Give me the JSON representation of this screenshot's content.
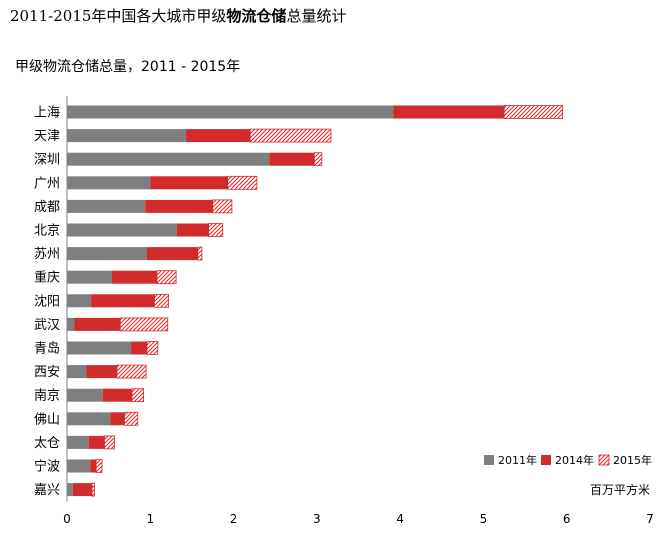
{
  "header": {
    "title_part1": "2011-2015年中国各大城市甲级",
    "title_part2": "物流仓储",
    "title_part3": "总量统计"
  },
  "chart_data": {
    "type": "bar",
    "orientation": "horizontal",
    "stacked": true,
    "title": "甲级物流仓储总量，2011 - 2015年",
    "unit_label": "百万平方米",
    "categories": [
      "上海",
      "天津",
      "深圳",
      "广州",
      "成都",
      "北京",
      "苏州",
      "重庆",
      "沈阳",
      "武汉",
      "青岛",
      "西安",
      "南京",
      "佛山",
      "太仓",
      "宁波",
      "嘉兴"
    ],
    "series": [
      {
        "name": "2011年",
        "color": "#7f7f7f",
        "pattern": "solid",
        "values": [
          3.92,
          1.43,
          2.43,
          1.0,
          0.94,
          1.32,
          0.96,
          0.54,
          0.29,
          0.09,
          0.77,
          0.23,
          0.43,
          0.52,
          0.26,
          0.28,
          0.07
        ]
      },
      {
        "name": "2014年",
        "color": "#d22b2b",
        "pattern": "solid",
        "values": [
          1.33,
          0.77,
          0.54,
          0.93,
          0.81,
          0.38,
          0.61,
          0.54,
          0.76,
          0.55,
          0.19,
          0.37,
          0.35,
          0.17,
          0.19,
          0.07,
          0.23
        ]
      },
      {
        "name": "2015年",
        "color": "#d22b2b",
        "pattern": "hatch",
        "values": [
          0.7,
          0.97,
          0.09,
          0.35,
          0.23,
          0.17,
          0.05,
          0.23,
          0.17,
          0.57,
          0.13,
          0.35,
          0.14,
          0.16,
          0.12,
          0.07,
          0.03
        ]
      }
    ],
    "x_axis": {
      "min": 0,
      "max": 7,
      "ticks": [
        0,
        1,
        2,
        3,
        4,
        5,
        6,
        7
      ]
    },
    "legend_position": "bottom-right"
  }
}
